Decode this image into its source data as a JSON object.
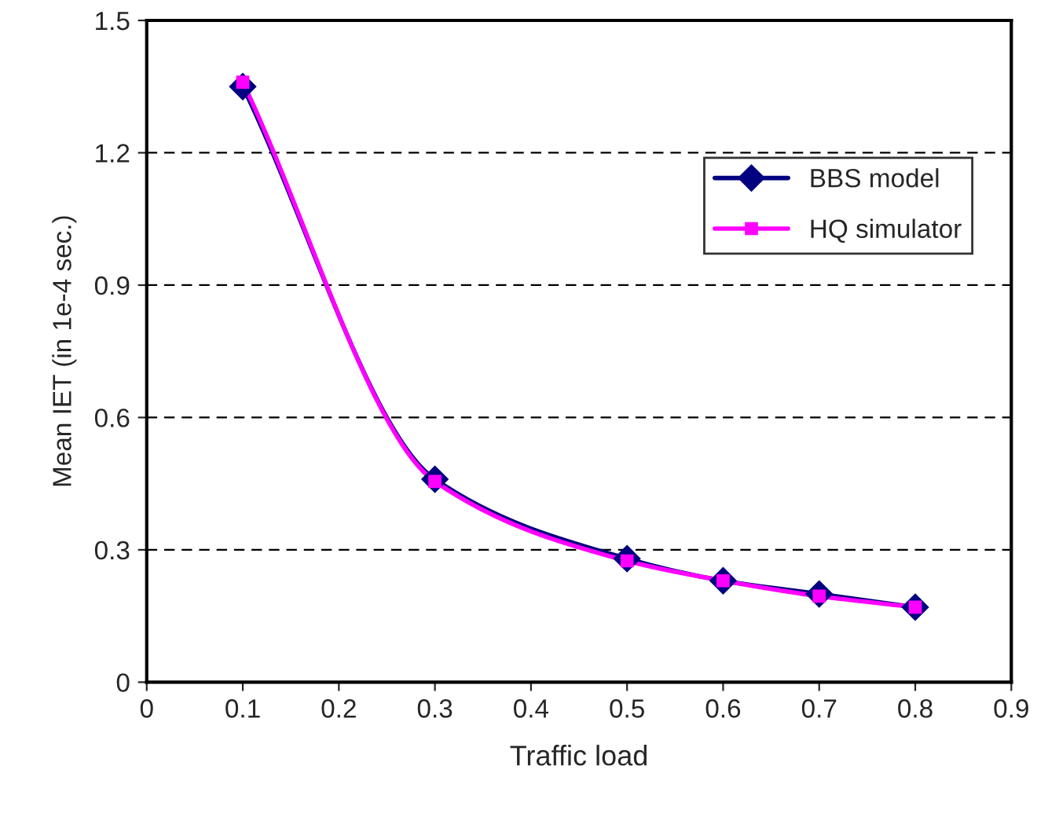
{
  "chart_data": {
    "type": "line",
    "xlabel": "Traffic load",
    "ylabel": "Mean IET (in 1e-4 sec.)",
    "x": [
      0.1,
      0.3,
      0.5,
      0.6,
      0.7,
      0.8
    ],
    "series": [
      {
        "name": "BBS model",
        "color": "#000080",
        "marker": "diamond",
        "values": [
          1.35,
          0.46,
          0.28,
          0.23,
          0.2,
          0.17
        ]
      },
      {
        "name": "HQ simulator",
        "color": "#ff00ff",
        "marker": "square",
        "values": [
          1.36,
          0.455,
          0.275,
          0.23,
          0.195,
          0.17
        ]
      }
    ],
    "xlim": [
      0,
      0.9
    ],
    "xticks": [
      0,
      0.1,
      0.2,
      0.3,
      0.4,
      0.5,
      0.6,
      0.7,
      0.8,
      0.9
    ],
    "ylim": [
      0,
      1.5
    ],
    "yticks": [
      0,
      0.3,
      0.6,
      0.9,
      1.2,
      1.5
    ],
    "grid": "y",
    "legend": "right",
    "line_style": "solid"
  }
}
